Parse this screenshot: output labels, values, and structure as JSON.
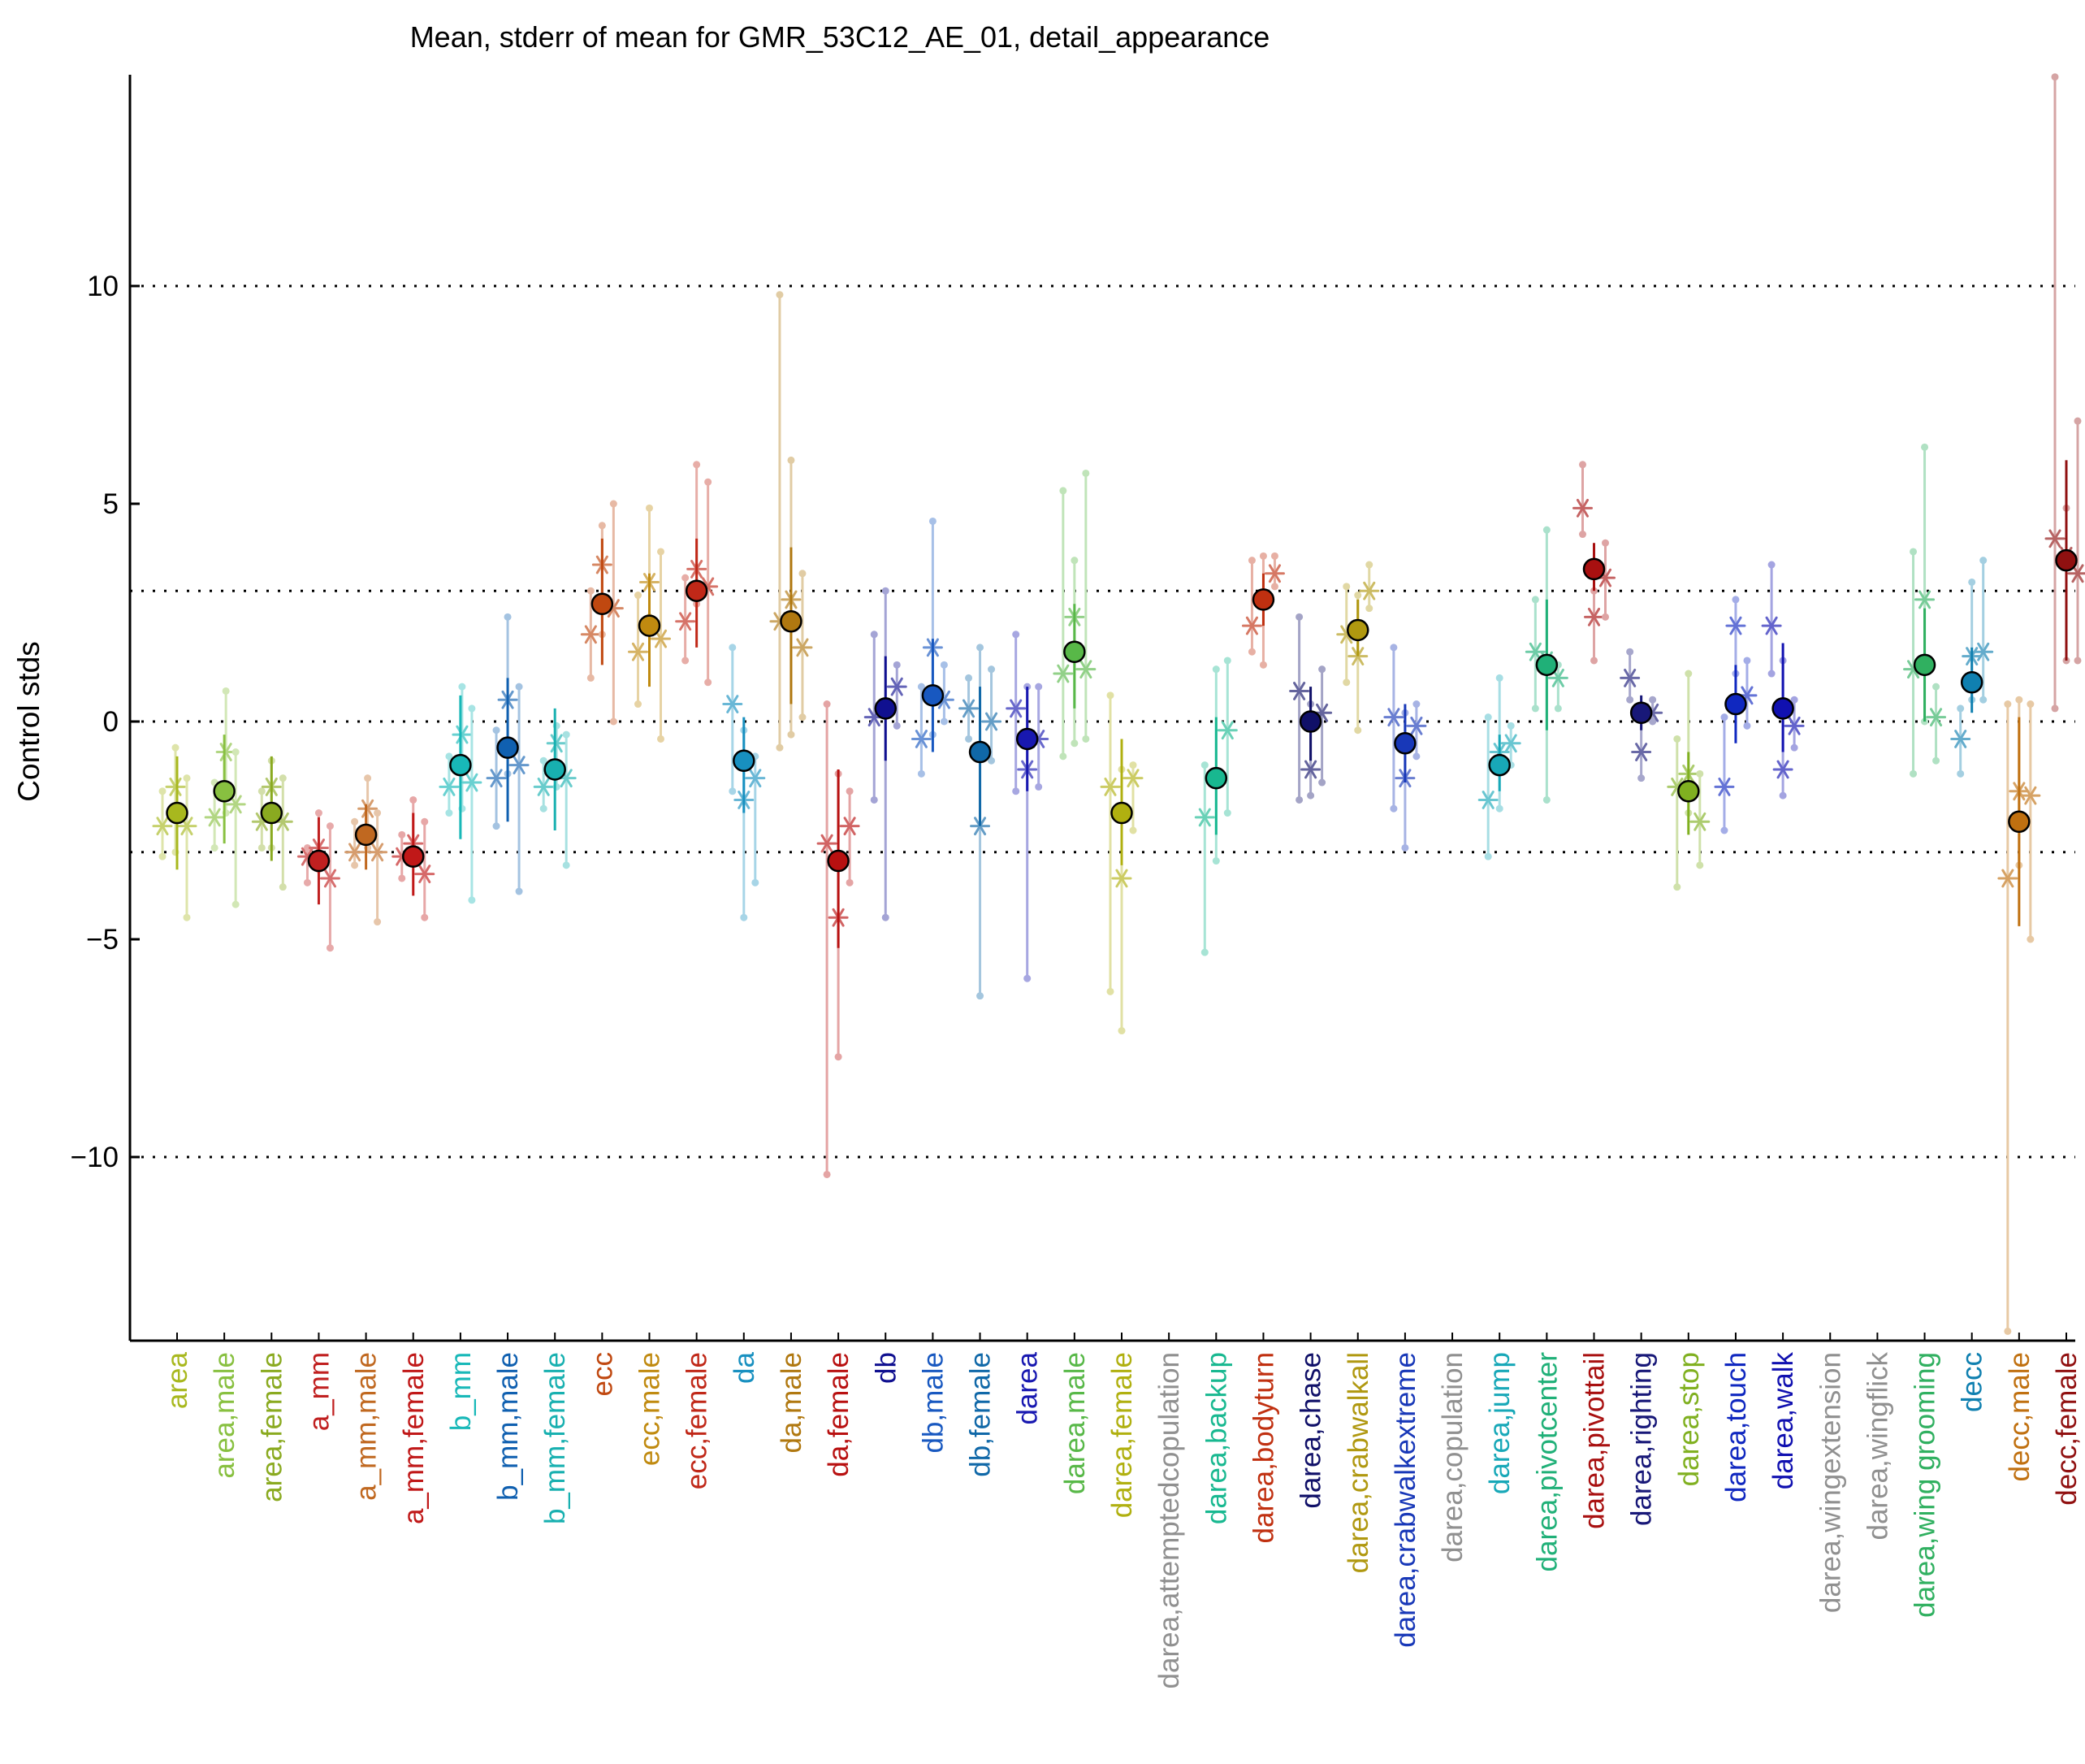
{
  "chart_data": {
    "type": "scatter",
    "title": "Mean, stderr of mean for GMR_53C12_AE_01, detail_appearance",
    "ylabel": "Control stds",
    "xlabel": "",
    "ylim": [
      -14.2,
      14.8
    ],
    "yticks": [
      -10,
      -5,
      0,
      5,
      10
    ],
    "ytick_labels": [
      "−10",
      "−5",
      "0",
      "5",
      "10"
    ],
    "reference_lines": [
      -10,
      -3,
      0,
      3,
      10
    ],
    "grid": false,
    "legend": "none",
    "markers": "filled circle = mean with stderr bar; asterisks = individual experiments with faint error bars",
    "categories": [
      {
        "label": "area",
        "color": "#a8b81e",
        "mean": -2.1,
        "lo": -3.4,
        "hi": -0.8,
        "marker": true,
        "stars": [
          [
            -18,
            -2.4,
            -3.1,
            -1.6
          ],
          [
            -2,
            -1.5,
            -3.0,
            -0.6
          ],
          [
            12,
            -2.4,
            -4.5,
            -1.3
          ]
        ]
      },
      {
        "label": "area,male",
        "color": "#88c040",
        "mean": -1.6,
        "lo": -2.8,
        "hi": -0.3,
        "marker": true,
        "stars": [
          [
            -12,
            -2.2,
            -2.9,
            -1.4
          ],
          [
            2,
            -0.7,
            -2.1,
            0.7
          ],
          [
            14,
            -1.9,
            -4.2,
            -0.7
          ]
        ]
      },
      {
        "label": "area,female",
        "color": "#8aaa20",
        "mean": -2.1,
        "lo": -3.2,
        "hi": -0.8,
        "marker": true,
        "stars": [
          [
            -12,
            -2.3,
            -2.9,
            -1.6
          ],
          [
            0,
            -1.5,
            -2.9,
            -0.9
          ],
          [
            14,
            -2.3,
            -3.8,
            -1.3
          ]
        ]
      },
      {
        "label": "a_mm",
        "color": "#c02020",
        "mean": -3.2,
        "lo": -4.2,
        "hi": -2.2,
        "marker": true,
        "stars": [
          [
            -14,
            -3.1,
            -3.7,
            -2.9
          ],
          [
            0,
            -2.9,
            -3.4,
            -2.1
          ],
          [
            14,
            -3.6,
            -5.2,
            -2.4
          ]
        ]
      },
      {
        "label": "a_mm,male",
        "color": "#c06820",
        "mean": -2.6,
        "lo": -3.4,
        "hi": -1.9,
        "marker": true,
        "stars": [
          [
            -14,
            -3.0,
            -3.3,
            -2.3
          ],
          [
            2,
            -2.0,
            -2.9,
            -1.3
          ],
          [
            14,
            -3.0,
            -4.6,
            -2.1
          ]
        ]
      },
      {
        "label": "a_mm,female",
        "color": "#c01818",
        "mean": -3.1,
        "lo": -4.0,
        "hi": -2.1,
        "marker": true,
        "stars": [
          [
            -14,
            -3.1,
            -3.6,
            -2.6
          ],
          [
            0,
            -2.8,
            -3.2,
            -1.8
          ],
          [
            14,
            -3.5,
            -4.5,
            -2.3
          ]
        ]
      },
      {
        "label": "b_mm",
        "color": "#18b8b8",
        "mean": -1.0,
        "lo": -2.7,
        "hi": 0.6,
        "marker": true,
        "stars": [
          [
            -14,
            -1.5,
            -2.1,
            -0.8
          ],
          [
            2,
            -0.3,
            -2.0,
            0.8
          ],
          [
            14,
            -1.4,
            -4.1,
            0.3
          ]
        ]
      },
      {
        "label": "b_mm,male",
        "color": "#1060b0",
        "mean": -0.6,
        "lo": -2.3,
        "hi": 1.0,
        "marker": true,
        "stars": [
          [
            -14,
            -1.3,
            -2.4,
            -0.2
          ],
          [
            0,
            0.5,
            -1.2,
            2.4
          ],
          [
            14,
            -1.0,
            -3.9,
            0.8
          ]
        ]
      },
      {
        "label": "b_mm,female",
        "color": "#18b0b0",
        "mean": -1.1,
        "lo": -2.5,
        "hi": 0.3,
        "marker": true,
        "stars": [
          [
            -14,
            -1.5,
            -2.0,
            -0.9
          ],
          [
            2,
            -0.5,
            -1.5,
            -0.1
          ],
          [
            14,
            -1.3,
            -3.3,
            -0.3
          ]
        ]
      },
      {
        "label": "ecc",
        "color": "#c04810",
        "mean": 2.7,
        "lo": 1.3,
        "hi": 4.2,
        "marker": true,
        "stars": [
          [
            -14,
            2.0,
            1.0,
            3.0
          ],
          [
            0,
            3.6,
            2.0,
            4.5
          ],
          [
            14,
            2.6,
            0.0,
            5.0
          ]
        ]
      },
      {
        "label": "ecc,male",
        "color": "#c08a10",
        "mean": 2.2,
        "lo": 0.8,
        "hi": 3.4,
        "marker": true,
        "stars": [
          [
            -14,
            1.6,
            0.4,
            2.9
          ],
          [
            0,
            3.2,
            2.4,
            4.9
          ],
          [
            14,
            1.9,
            -0.4,
            3.9
          ]
        ]
      },
      {
        "label": "ecc,female",
        "color": "#c02818",
        "mean": 3.0,
        "lo": 1.7,
        "hi": 4.2,
        "marker": true,
        "stars": [
          [
            -14,
            2.3,
            1.4,
            3.3
          ],
          [
            0,
            3.5,
            2.7,
            5.9
          ],
          [
            14,
            3.1,
            0.9,
            5.5
          ]
        ]
      },
      {
        "label": "da",
        "color": "#1890c0",
        "mean": -0.9,
        "lo": -2.1,
        "hi": 0.1,
        "marker": true,
        "stars": [
          [
            -14,
            0.4,
            -1.6,
            1.7
          ],
          [
            0,
            -1.8,
            -4.5,
            -0.2
          ],
          [
            14,
            -1.3,
            -3.7,
            -0.8
          ]
        ]
      },
      {
        "label": "da,male",
        "color": "#b07810",
        "mean": 2.3,
        "lo": 0.4,
        "hi": 4.0,
        "marker": true,
        "stars": [
          [
            -14,
            2.3,
            -0.6,
            9.8
          ],
          [
            0,
            2.8,
            -0.3,
            6.0
          ],
          [
            14,
            1.7,
            0.1,
            3.4
          ]
        ]
      },
      {
        "label": "da,female",
        "color": "#b81010",
        "mean": -3.2,
        "lo": -5.2,
        "hi": -1.1,
        "marker": true,
        "stars": [
          [
            -14,
            -2.8,
            -10.4,
            0.4
          ],
          [
            0,
            -4.5,
            -7.7,
            -1.2
          ],
          [
            14,
            -2.4,
            -3.7,
            -1.6
          ]
        ]
      },
      {
        "label": "db",
        "color": "#101090",
        "mean": 0.3,
        "lo": -0.9,
        "hi": 1.5,
        "marker": true,
        "stars": [
          [
            -14,
            0.1,
            -1.8,
            2.0
          ],
          [
            0,
            0.3,
            -4.5,
            3.0
          ],
          [
            14,
            0.8,
            -0.1,
            1.3
          ]
        ]
      },
      {
        "label": "db,male",
        "color": "#1858c0",
        "mean": 0.6,
        "lo": -0.7,
        "hi": 1.9,
        "marker": true,
        "stars": [
          [
            -14,
            -0.4,
            -1.2,
            0.8
          ],
          [
            0,
            1.7,
            -0.3,
            4.6
          ],
          [
            14,
            0.5,
            0.0,
            1.3
          ]
        ]
      },
      {
        "label": "db,female",
        "color": "#1068a8",
        "mean": -0.7,
        "lo": -2.4,
        "hi": 0.8,
        "marker": true,
        "stars": [
          [
            -14,
            0.3,
            -0.4,
            1.0
          ],
          [
            0,
            -2.4,
            -6.3,
            1.7
          ],
          [
            14,
            0.0,
            -0.9,
            1.2
          ]
        ]
      },
      {
        "label": "darea",
        "color": "#1818b0",
        "mean": -0.4,
        "lo": -1.6,
        "hi": 0.8,
        "marker": true,
        "stars": [
          [
            -14,
            0.3,
            -1.6,
            2.0
          ],
          [
            0,
            -1.1,
            -5.9,
            0.8
          ],
          [
            14,
            -0.4,
            -1.5,
            0.8
          ]
        ]
      },
      {
        "label": "darea,male",
        "color": "#58b848",
        "mean": 1.6,
        "lo": 0.3,
        "hi": 2.7,
        "marker": true,
        "stars": [
          [
            -14,
            1.1,
            -0.8,
            5.3
          ],
          [
            0,
            2.4,
            -0.5,
            3.7
          ],
          [
            14,
            1.2,
            -0.4,
            5.7
          ]
        ]
      },
      {
        "label": "darea,female",
        "color": "#b0b010",
        "mean": -2.1,
        "lo": -3.3,
        "hi": -0.4,
        "marker": true,
        "stars": [
          [
            -14,
            -1.5,
            -6.2,
            0.6
          ],
          [
            0,
            -3.6,
            -7.1,
            -1.1
          ],
          [
            14,
            -1.3,
            -2.5,
            -1.0
          ]
        ]
      },
      {
        "label": "darea,attemptedcopulation",
        "color": "#909090",
        "marker": false,
        "stars": []
      },
      {
        "label": "darea,backup",
        "color": "#18b890",
        "mean": -1.3,
        "lo": -2.6,
        "hi": 0.1,
        "marker": true,
        "stars": [
          [
            -14,
            -2.2,
            -5.3,
            -1.0
          ],
          [
            0,
            -1.3,
            -3.2,
            1.2
          ],
          [
            14,
            -0.2,
            -2.1,
            1.4
          ]
        ]
      },
      {
        "label": "darea,bodyturn",
        "color": "#c03010",
        "mean": 2.8,
        "lo": 2.2,
        "hi": 3.4,
        "marker": true,
        "stars": [
          [
            -14,
            2.2,
            1.6,
            3.7
          ],
          [
            0,
            2.8,
            1.3,
            3.8
          ],
          [
            14,
            3.4,
            3.1,
            3.8
          ]
        ]
      },
      {
        "label": "darea,chase",
        "color": "#101068",
        "mean": 0.0,
        "lo": -0.9,
        "hi": 0.8,
        "marker": true,
        "stars": [
          [
            -14,
            0.7,
            -1.8,
            2.4
          ],
          [
            0,
            -1.1,
            -1.7,
            0.4
          ],
          [
            14,
            0.2,
            -1.4,
            1.2
          ]
        ]
      },
      {
        "label": "darea,crabwalkall",
        "color": "#b09810",
        "mean": 2.1,
        "lo": 1.5,
        "hi": 2.8,
        "marker": true,
        "stars": [
          [
            -14,
            2.0,
            0.9,
            3.1
          ],
          [
            0,
            1.5,
            -0.2,
            2.9
          ],
          [
            14,
            3.0,
            2.6,
            3.6
          ]
        ]
      },
      {
        "label": "darea,crabwalkextreme",
        "color": "#1838b8",
        "mean": -0.5,
        "lo": -1.4,
        "hi": 0.4,
        "marker": true,
        "stars": [
          [
            -14,
            0.1,
            -2.0,
            1.7
          ],
          [
            0,
            -1.3,
            -2.9,
            0.2
          ],
          [
            14,
            -0.1,
            -0.8,
            0.4
          ]
        ]
      },
      {
        "label": "darea,copulation",
        "color": "#909090",
        "marker": false,
        "stars": []
      },
      {
        "label": "darea,jump",
        "color": "#18a8b8",
        "mean": -1.0,
        "lo": -1.6,
        "hi": -0.3,
        "marker": true,
        "stars": [
          [
            -14,
            -1.8,
            -3.1,
            0.1
          ],
          [
            0,
            -0.7,
            -2.0,
            1.0
          ],
          [
            14,
            -0.5,
            -1.0,
            -0.1
          ]
        ]
      },
      {
        "label": "darea,pivotcenter",
        "color": "#20b078",
        "mean": 1.3,
        "lo": -0.2,
        "hi": 2.8,
        "marker": true,
        "stars": [
          [
            -14,
            1.6,
            0.3,
            2.8
          ],
          [
            0,
            1.4,
            -1.8,
            4.4
          ],
          [
            14,
            1.0,
            0.3,
            1.3
          ]
        ]
      },
      {
        "label": "darea,pivottail",
        "color": "#a81010",
        "mean": 3.5,
        "lo": 3.0,
        "hi": 4.1,
        "marker": true,
        "stars": [
          [
            -14,
            4.9,
            4.3,
            5.9
          ],
          [
            0,
            2.4,
            1.4,
            3.0
          ],
          [
            14,
            3.3,
            2.4,
            4.1
          ]
        ]
      },
      {
        "label": "darea,righting",
        "color": "#181878",
        "mean": 0.2,
        "lo": -0.2,
        "hi": 0.6,
        "marker": true,
        "stars": [
          [
            -14,
            1.0,
            0.5,
            1.6
          ],
          [
            0,
            -0.7,
            -1.3,
            0.1
          ],
          [
            14,
            0.2,
            0.0,
            0.5
          ]
        ]
      },
      {
        "label": "darea,stop",
        "color": "#80b020",
        "mean": -1.6,
        "lo": -2.6,
        "hi": -0.7,
        "marker": true,
        "stars": [
          [
            -14,
            -1.5,
            -3.8,
            -0.4
          ],
          [
            0,
            -1.2,
            -2.1,
            1.1
          ],
          [
            14,
            -2.3,
            -3.3,
            -1.2
          ]
        ]
      },
      {
        "label": "darea,touch",
        "color": "#1028c0",
        "mean": 0.4,
        "lo": -0.5,
        "hi": 1.3,
        "marker": true,
        "stars": [
          [
            -14,
            -1.5,
            -2.5,
            0.1
          ],
          [
            0,
            2.2,
            1.1,
            2.8
          ],
          [
            14,
            0.6,
            -0.1,
            1.4
          ]
        ]
      },
      {
        "label": "darea,walk",
        "color": "#1010b0",
        "mean": 0.3,
        "lo": -0.7,
        "hi": 1.8,
        "marker": true,
        "stars": [
          [
            -14,
            2.2,
            1.1,
            3.6
          ],
          [
            0,
            -1.1,
            -1.7,
            1.4
          ],
          [
            14,
            -0.1,
            -0.6,
            0.5
          ]
        ]
      },
      {
        "label": "darea,wingextension",
        "color": "#909090",
        "marker": false,
        "stars": []
      },
      {
        "label": "darea,wingflick",
        "color": "#909090",
        "marker": false,
        "stars": []
      },
      {
        "label": "darea,wing grooming",
        "color": "#30b060",
        "mean": 1.3,
        "lo": 0.0,
        "hi": 2.6,
        "marker": true,
        "stars": [
          [
            -14,
            1.2,
            -1.2,
            3.9
          ],
          [
            0,
            2.8,
            0.0,
            6.3
          ],
          [
            14,
            0.1,
            -0.9,
            0.8
          ]
        ]
      },
      {
        "label": "decc",
        "color": "#1080b0",
        "mean": 0.9,
        "lo": 0.2,
        "hi": 1.7,
        "marker": true,
        "stars": [
          [
            -14,
            -0.4,
            -1.2,
            0.3
          ],
          [
            0,
            1.5,
            0.5,
            3.2
          ],
          [
            14,
            1.6,
            0.5,
            3.7
          ]
        ]
      },
      {
        "label": "decc,male",
        "color": "#c07010",
        "mean": -2.3,
        "lo": -4.7,
        "hi": 0.1,
        "marker": true,
        "stars": [
          [
            -14,
            -3.6,
            -14.0,
            0.4
          ],
          [
            0,
            -1.6,
            -3.3,
            0.5
          ],
          [
            14,
            -1.7,
            -5.0,
            0.4
          ]
        ]
      },
      {
        "label": "decc,female",
        "color": "#901010",
        "mean": 3.7,
        "lo": 1.4,
        "hi": 6.0,
        "marker": true,
        "stars": [
          [
            -14,
            4.2,
            0.3,
            14.8
          ],
          [
            0,
            3.8,
            1.4,
            4.9
          ],
          [
            14,
            3.4,
            1.4,
            6.9
          ]
        ]
      }
    ]
  }
}
